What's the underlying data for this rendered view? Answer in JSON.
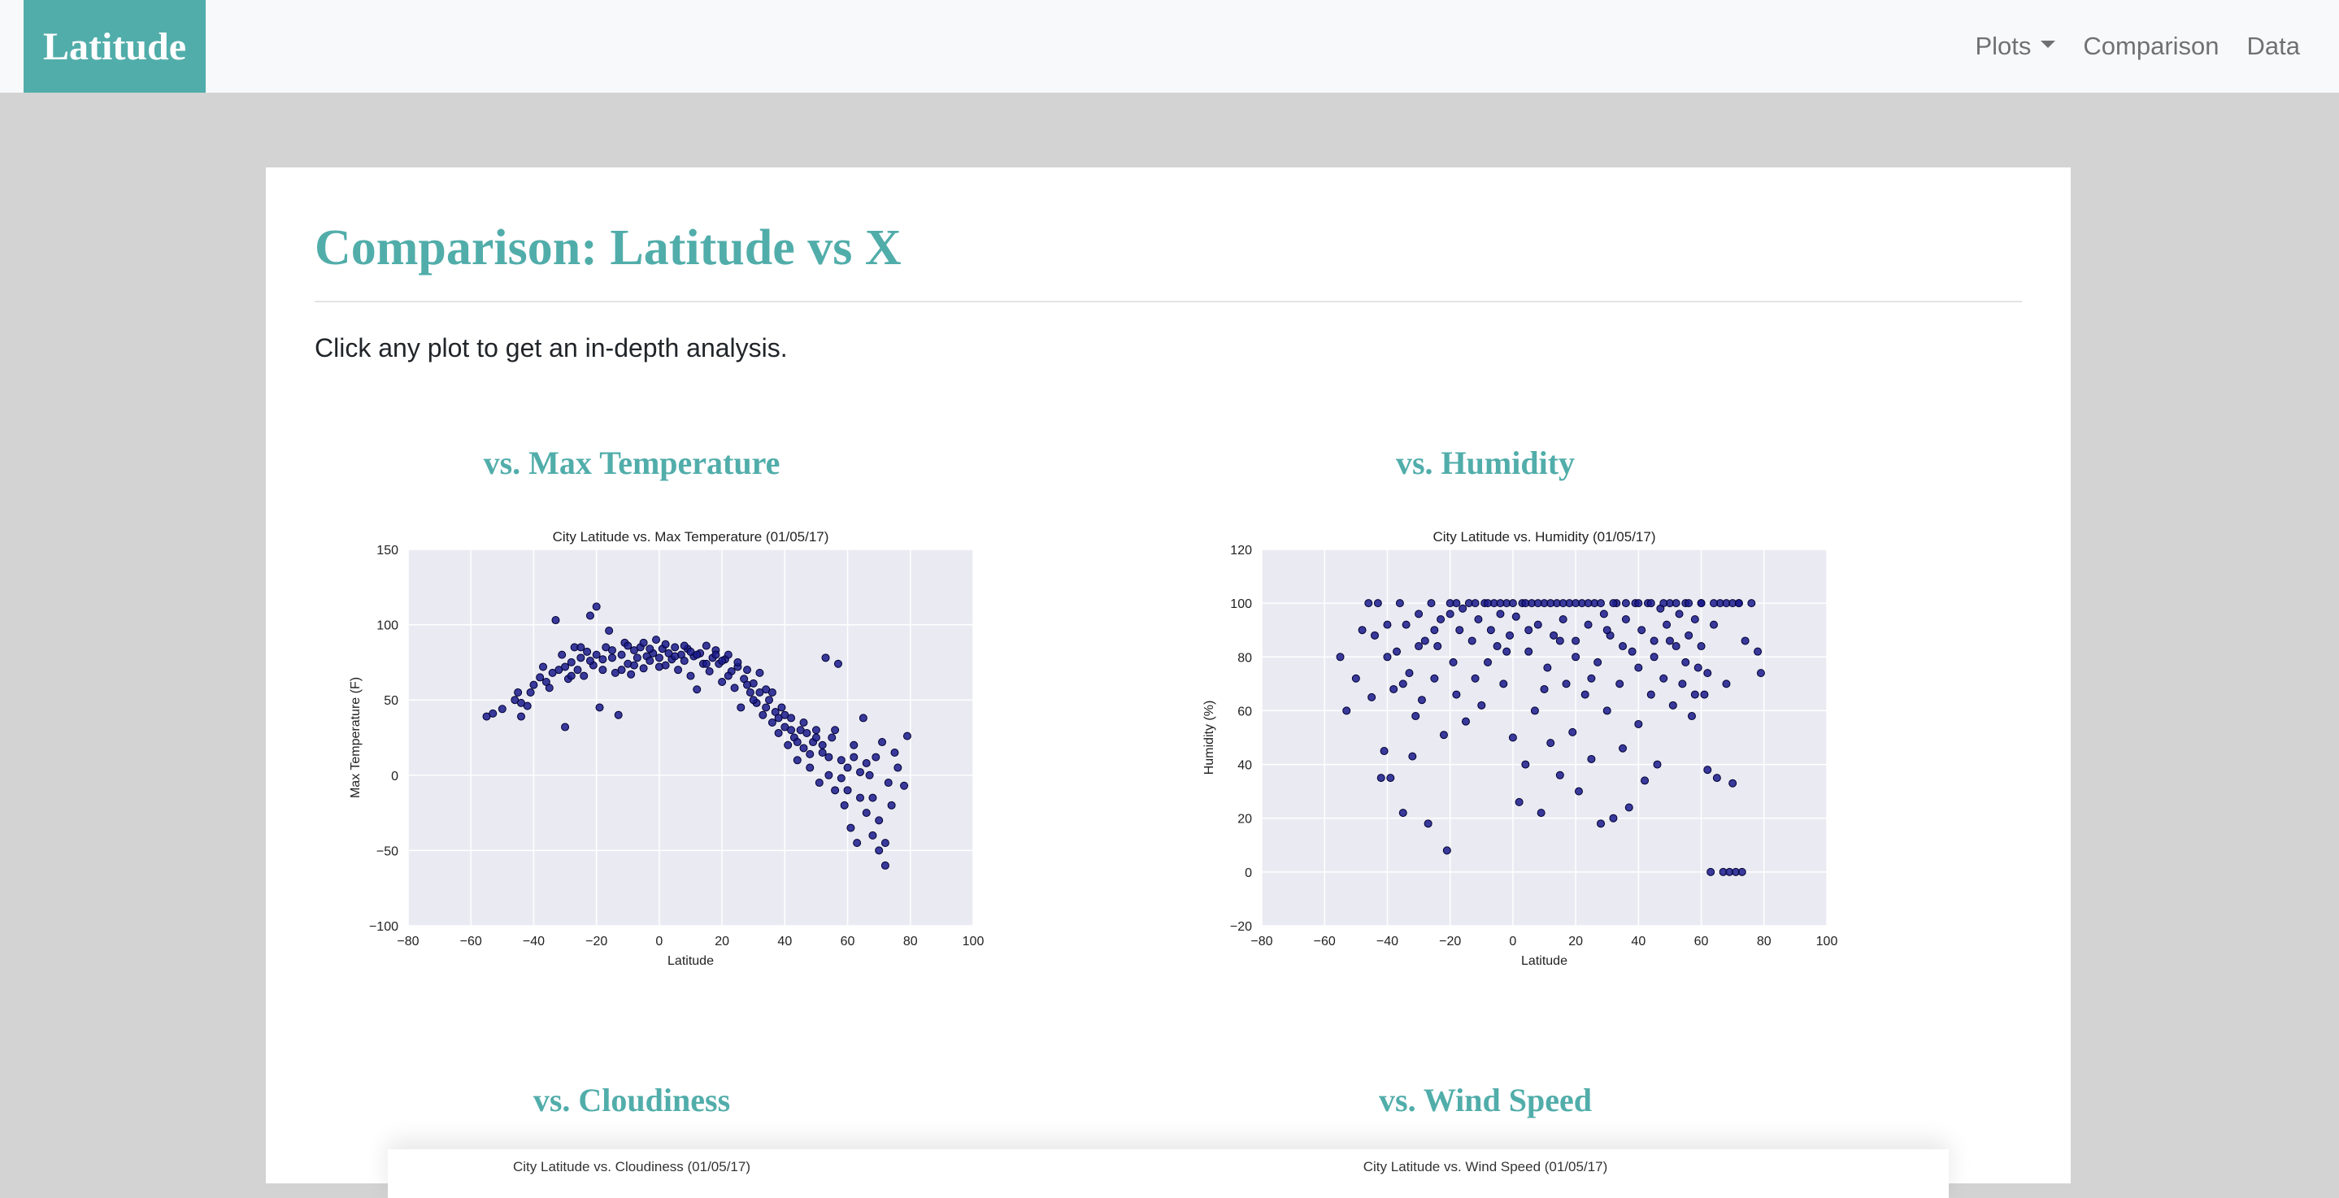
{
  "brand": "Latitude",
  "nav": {
    "plots_label": "Plots",
    "comparison_label": "Comparison",
    "data_label": "Data"
  },
  "page": {
    "title": "Comparison: Latitude vs X",
    "intro": "Click any plot to get an in-depth analysis."
  },
  "plots": [
    {
      "heading": "vs. Max Temperature"
    },
    {
      "heading": "vs. Humidity"
    },
    {
      "heading": "vs. Cloudiness",
      "faded_title": "City Latitude vs. Cloudiness (01/05/17)"
    },
    {
      "heading": "vs. Wind Speed",
      "faded_title": "City Latitude vs. Wind Speed (01/05/17)"
    }
  ],
  "colors": {
    "accent": "#51adaa",
    "plot_bg": "#eaeaf2",
    "marker": "#1a1a8c",
    "marker_edge": "#000033"
  },
  "chart_data": [
    {
      "type": "scatter",
      "title": "City Latitude vs. Max Temperature (01/05/17)",
      "xlabel": "Latitude",
      "ylabel": "Max Temperature (F)",
      "xlim": [
        -80,
        100
      ],
      "ylim": [
        -100,
        150
      ],
      "xticks": [
        -80,
        -60,
        -40,
        -20,
        0,
        20,
        40,
        60,
        80,
        100
      ],
      "yticks": [
        -100,
        -50,
        0,
        50,
        100,
        150
      ],
      "grid": true,
      "points": [
        [
          -55,
          39
        ],
        [
          -53,
          41
        ],
        [
          -50,
          44
        ],
        [
          -46,
          50
        ],
        [
          -45,
          55
        ],
        [
          -44,
          39
        ],
        [
          -42,
          46
        ],
        [
          -40,
          60
        ],
        [
          -38,
          65
        ],
        [
          -37,
          72
        ],
        [
          -35,
          58
        ],
        [
          -33,
          103
        ],
        [
          -32,
          70
        ],
        [
          -31,
          80
        ],
        [
          -30,
          32
        ],
        [
          -29,
          64
        ],
        [
          -28,
          75
        ],
        [
          -27,
          85
        ],
        [
          -26,
          70
        ],
        [
          -25,
          78
        ],
        [
          -24,
          66
        ],
        [
          -23,
          82
        ],
        [
          -22,
          106
        ],
        [
          -21,
          73
        ],
        [
          -20,
          112
        ],
        [
          -19,
          45
        ],
        [
          -18,
          70
        ],
        [
          -17,
          85
        ],
        [
          -16,
          96
        ],
        [
          -15,
          78
        ],
        [
          -14,
          68
        ],
        [
          -13,
          40
        ],
        [
          -12,
          80
        ],
        [
          -11,
          88
        ],
        [
          -10,
          74
        ],
        [
          -9,
          67
        ],
        [
          -8,
          83
        ],
        [
          -7,
          78
        ],
        [
          -6,
          85
        ],
        [
          -5,
          71
        ],
        [
          -4,
          79
        ],
        [
          -3,
          76
        ],
        [
          -2,
          81
        ],
        [
          -1,
          90
        ],
        [
          0,
          78
        ],
        [
          1,
          84
        ],
        [
          2,
          73
        ],
        [
          3,
          81
        ],
        [
          4,
          77
        ],
        [
          5,
          85
        ],
        [
          6,
          70
        ],
        [
          7,
          80
        ],
        [
          8,
          76
        ],
        [
          9,
          84
        ],
        [
          10,
          66
        ],
        [
          11,
          79
        ],
        [
          12,
          57
        ],
        [
          13,
          81
        ],
        [
          14,
          74
        ],
        [
          15,
          86
        ],
        [
          16,
          69
        ],
        [
          17,
          78
        ],
        [
          18,
          83
        ],
        [
          19,
          74
        ],
        [
          20,
          62
        ],
        [
          21,
          77
        ],
        [
          22,
          80
        ],
        [
          23,
          69
        ],
        [
          24,
          58
        ],
        [
          25,
          72
        ],
        [
          26,
          45
        ],
        [
          27,
          64
        ],
        [
          28,
          70
        ],
        [
          29,
          55
        ],
        [
          30,
          61
        ],
        [
          31,
          48
        ],
        [
          32,
          68
        ],
        [
          33,
          40
        ],
        [
          34,
          57
        ],
        [
          35,
          50
        ],
        [
          36,
          35
        ],
        [
          37,
          42
        ],
        [
          38,
          28
        ],
        [
          39,
          45
        ],
        [
          40,
          32
        ],
        [
          41,
          20
        ],
        [
          42,
          38
        ],
        [
          43,
          25
        ],
        [
          44,
          10
        ],
        [
          45,
          30
        ],
        [
          46,
          18
        ],
        [
          47,
          28
        ],
        [
          48,
          5
        ],
        [
          49,
          22
        ],
        [
          50,
          30
        ],
        [
          51,
          -5
        ],
        [
          52,
          15
        ],
        [
          53,
          78
        ],
        [
          54,
          0
        ],
        [
          55,
          25
        ],
        [
          56,
          -10
        ],
        [
          57,
          74
        ],
        [
          58,
          10
        ],
        [
          59,
          -20
        ],
        [
          60,
          5
        ],
        [
          61,
          -35
        ],
        [
          62,
          20
        ],
        [
          63,
          -45
        ],
        [
          64,
          -15
        ],
        [
          65,
          38
        ],
        [
          66,
          -25
        ],
        [
          67,
          0
        ],
        [
          68,
          -40
        ],
        [
          69,
          12
        ],
        [
          70,
          -50
        ],
        [
          71,
          22
        ],
        [
          72,
          -60
        ],
        [
          73,
          -5
        ],
        [
          75,
          15
        ],
        [
          76,
          5
        ],
        [
          78,
          -7
        ],
        [
          79,
          26
        ],
        [
          -44,
          48
        ],
        [
          -41,
          55
        ],
        [
          -36,
          62
        ],
        [
          -34,
          68
        ],
        [
          -30,
          72
        ],
        [
          -28,
          66
        ],
        [
          -25,
          85
        ],
        [
          -22,
          76
        ],
        [
          -20,
          80
        ],
        [
          -18,
          77
        ],
        [
          -15,
          83
        ],
        [
          -12,
          70
        ],
        [
          -10,
          86
        ],
        [
          -8,
          73
        ],
        [
          -5,
          88
        ],
        [
          -3,
          84
        ],
        [
          0,
          72
        ],
        [
          2,
          87
        ],
        [
          5,
          79
        ],
        [
          8,
          86
        ],
        [
          10,
          82
        ],
        [
          12,
          80
        ],
        [
          15,
          74
        ],
        [
          18,
          80
        ],
        [
          20,
          76
        ],
        [
          22,
          66
        ],
        [
          25,
          75
        ],
        [
          28,
          60
        ],
        [
          30,
          50
        ],
        [
          32,
          55
        ],
        [
          34,
          45
        ],
        [
          36,
          55
        ],
        [
          38,
          38
        ],
        [
          40,
          40
        ],
        [
          42,
          30
        ],
        [
          44,
          22
        ],
        [
          46,
          35
        ],
        [
          48,
          14
        ],
        [
          50,
          25
        ],
        [
          52,
          20
        ],
        [
          54,
          12
        ],
        [
          56,
          30
        ],
        [
          58,
          -2
        ],
        [
          60,
          -10
        ],
        [
          62,
          12
        ],
        [
          64,
          2
        ],
        [
          66,
          8
        ],
        [
          68,
          -15
        ],
        [
          70,
          -30
        ],
        [
          72,
          -45
        ],
        [
          74,
          -20
        ]
      ]
    },
    {
      "type": "scatter",
      "title": "City Latitude vs. Humidity (01/05/17)",
      "xlabel": "Latitude",
      "ylabel": "Humidity (%)",
      "xlim": [
        -80,
        100
      ],
      "ylim": [
        -20,
        120
      ],
      "xticks": [
        -80,
        -60,
        -40,
        -20,
        0,
        20,
        40,
        60,
        80,
        100
      ],
      "yticks": [
        -20,
        0,
        20,
        40,
        60,
        80,
        100,
        120
      ],
      "grid": true,
      "points": [
        [
          -55,
          80
        ],
        [
          -53,
          60
        ],
        [
          -50,
          72
        ],
        [
          -48,
          90
        ],
        [
          -46,
          100
        ],
        [
          -45,
          65
        ],
        [
          -44,
          88
        ],
        [
          -42,
          35
        ],
        [
          -41,
          45
        ],
        [
          -40,
          80
        ],
        [
          -39,
          35
        ],
        [
          -38,
          68
        ],
        [
          -37,
          82
        ],
        [
          -36,
          100
        ],
        [
          -35,
          22
        ],
        [
          -34,
          92
        ],
        [
          -33,
          74
        ],
        [
          -32,
          43
        ],
        [
          -31,
          58
        ],
        [
          -30,
          96
        ],
        [
          -29,
          64
        ],
        [
          -28,
          86
        ],
        [
          -27,
          18
        ],
        [
          -26,
          100
        ],
        [
          -25,
          72
        ],
        [
          -24,
          84
        ],
        [
          -23,
          94
        ],
        [
          -22,
          51
        ],
        [
          -21,
          8
        ],
        [
          -20,
          100
        ],
        [
          -19,
          78
        ],
        [
          -18,
          66
        ],
        [
          -17,
          90
        ],
        [
          -16,
          98
        ],
        [
          -15,
          56
        ],
        [
          -14,
          100
        ],
        [
          -13,
          86
        ],
        [
          -12,
          72
        ],
        [
          -11,
          94
        ],
        [
          -10,
          62
        ],
        [
          -9,
          100
        ],
        [
          -8,
          78
        ],
        [
          -7,
          90
        ],
        [
          -6,
          100
        ],
        [
          -5,
          84
        ],
        [
          -4,
          96
        ],
        [
          -3,
          70
        ],
        [
          -2,
          100
        ],
        [
          -1,
          88
        ],
        [
          0,
          50
        ],
        [
          1,
          95
        ],
        [
          2,
          26
        ],
        [
          3,
          100
        ],
        [
          4,
          40
        ],
        [
          5,
          82
        ],
        [
          6,
          100
        ],
        [
          7,
          60
        ],
        [
          8,
          92
        ],
        [
          9,
          22
        ],
        [
          10,
          100
        ],
        [
          11,
          76
        ],
        [
          12,
          48
        ],
        [
          13,
          88
        ],
        [
          14,
          100
        ],
        [
          15,
          36
        ],
        [
          16,
          94
        ],
        [
          17,
          70
        ],
        [
          18,
          100
        ],
        [
          19,
          52
        ],
        [
          20,
          86
        ],
        [
          21,
          30
        ],
        [
          22,
          100
        ],
        [
          23,
          66
        ],
        [
          24,
          92
        ],
        [
          25,
          42
        ],
        [
          26,
          100
        ],
        [
          27,
          78
        ],
        [
          28,
          18
        ],
        [
          29,
          96
        ],
        [
          30,
          60
        ],
        [
          31,
          88
        ],
        [
          32,
          20
        ],
        [
          33,
          100
        ],
        [
          34,
          70
        ],
        [
          35,
          46
        ],
        [
          36,
          94
        ],
        [
          37,
          24
        ],
        [
          38,
          82
        ],
        [
          39,
          100
        ],
        [
          40,
          55
        ],
        [
          41,
          90
        ],
        [
          42,
          34
        ],
        [
          43,
          100
        ],
        [
          44,
          66
        ],
        [
          45,
          86
        ],
        [
          46,
          40
        ],
        [
          47,
          98
        ],
        [
          48,
          72
        ],
        [
          49,
          92
        ],
        [
          50,
          100
        ],
        [
          51,
          62
        ],
        [
          52,
          84
        ],
        [
          53,
          96
        ],
        [
          54,
          70
        ],
        [
          55,
          100
        ],
        [
          56,
          88
        ],
        [
          57,
          58
        ],
        [
          58,
          94
        ],
        [
          59,
          76
        ],
        [
          60,
          100
        ],
        [
          61,
          66
        ],
        [
          62,
          38
        ],
        [
          63,
          0
        ],
        [
          64,
          92
        ],
        [
          65,
          35
        ],
        [
          66,
          100
        ],
        [
          67,
          0
        ],
        [
          68,
          70
        ],
        [
          69,
          0
        ],
        [
          70,
          33
        ],
        [
          71,
          0
        ],
        [
          72,
          100
        ],
        [
          73,
          0
        ],
        [
          74,
          86
        ],
        [
          76,
          100
        ],
        [
          78,
          82
        ],
        [
          79,
          74
        ],
        [
          -43,
          100
        ],
        [
          -40,
          92
        ],
        [
          -35,
          70
        ],
        [
          -30,
          84
        ],
        [
          -25,
          90
        ],
        [
          -20,
          96
        ],
        [
          -18,
          100
        ],
        [
          -12,
          100
        ],
        [
          -8,
          100
        ],
        [
          -4,
          100
        ],
        [
          0,
          100
        ],
        [
          4,
          100
        ],
        [
          8,
          100
        ],
        [
          12,
          100
        ],
        [
          16,
          100
        ],
        [
          20,
          100
        ],
        [
          24,
          100
        ],
        [
          28,
          100
        ],
        [
          32,
          100
        ],
        [
          36,
          100
        ],
        [
          40,
          100
        ],
        [
          44,
          100
        ],
        [
          48,
          100
        ],
        [
          52,
          100
        ],
        [
          56,
          100
        ],
        [
          60,
          100
        ],
        [
          64,
          100
        ],
        [
          68,
          100
        ],
        [
          70,
          100
        ],
        [
          72,
          100
        ],
        [
          45,
          80
        ],
        [
          50,
          86
        ],
        [
          55,
          78
        ],
        [
          60,
          84
        ],
        [
          62,
          74
        ],
        [
          58,
          66
        ],
        [
          40,
          76
        ],
        [
          35,
          84
        ],
        [
          30,
          90
        ],
        [
          25,
          72
        ],
        [
          20,
          80
        ],
        [
          15,
          86
        ],
        [
          10,
          68
        ],
        [
          5,
          90
        ],
        [
          -2,
          82
        ]
      ]
    }
  ]
}
